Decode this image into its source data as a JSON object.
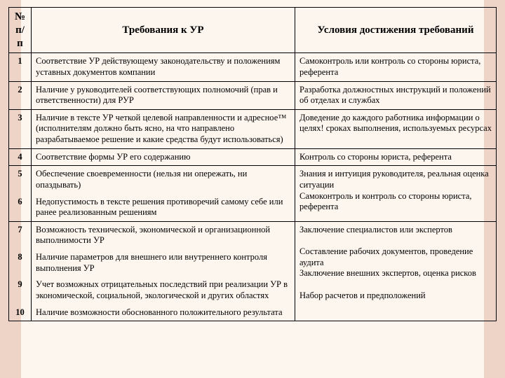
{
  "style": {
    "bg_outer": "#eed4c7",
    "bg_inner": "#fdf6ef",
    "border_color": "#000000",
    "header_fontsize": "15px",
    "body_fontsize": "12.5px",
    "col_widths": {
      "num": "32px",
      "req": "376px",
      "cond": "auto"
    }
  },
  "table": {
    "headers": {
      "num": "№ п/п",
      "req": "Требования к УР",
      "cond": "Условия достижения требований"
    },
    "groups": [
      {
        "cond": "Самоконтроль или контроль со стороны юриста, референта",
        "rows": [
          {
            "n": "1",
            "req": "Соответствие УР действующему законодательству и положениям уставных документов компании"
          }
        ]
      },
      {
        "cond": "Разработка должностных инструкций и положений об отделах и службах",
        "rows": [
          {
            "n": "2",
            "req": "Наличие у руководителей соответствующих полномочий (прав и ответственности) для РУР"
          }
        ]
      },
      {
        "cond": "Доведение до каждого работника информации о целях! сроках выполнения, используемых ресурсах",
        "rows": [
          {
            "n": "3",
            "req": "Наличие в тексте УР четкой целевой направленности и адресное™ (исполнителям должно быть ясно, на что направлено разрабатываемое решение и какие средства будут использоваться)"
          }
        ]
      },
      {
        "cond": "Контроль со стороны юриста, референта",
        "rows": [
          {
            "n": "4",
            "req": "Соответствие формы УР его содержанию"
          }
        ]
      },
      {
        "cond": "Знания и интуиция руководителя, реальная оценка ситуации\nСамоконтроль и контроль со стороны юриста, референта",
        "rows": [
          {
            "n": "5",
            "req": "Обеспечение своевременности (нельзя ни опережать, ни опаздывать)"
          },
          {
            "n": "6",
            "req": "Недопустимость в тексте решения противоречий самому себе или ранее реализованным решениям"
          }
        ]
      },
      {
        "cond": "Заключение специалистов или экспертов\n\nСоставление рабочих документов, проведение аудита\nЗаключение внешних экспертов, оценка рисков\n\nНабор расчетов и предположений",
        "rows": [
          {
            "n": "7",
            "req": "Возможность технической, экономической и организационной выполнимости УР"
          },
          {
            "n": "8",
            "req": "Наличие параметров для внешнего или внутреннего контроля выполнения УР"
          },
          {
            "n": "9",
            "req": "Учет возможных отрицательных последствий при реализации УР в экономической, социальной, экологической и других областях"
          },
          {
            "n": "10",
            "req": "Наличие возможности обоснованного положительного результата"
          }
        ]
      }
    ]
  }
}
